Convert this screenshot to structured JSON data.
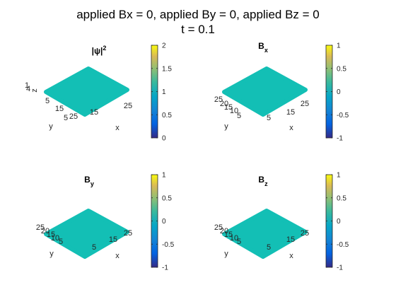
{
  "figure": {
    "title_line1": "applied Bx = 0, applied By = 0, applied Bz = 0",
    "title_line2": "t = 0.1"
  },
  "chart_data": [
    {
      "type": "surface",
      "title_main": "|ψ|",
      "title_sup": "2",
      "title_sub": "",
      "xlabel": "x",
      "ylabel": "y",
      "zlabel": "z",
      "x_ticks": [
        "5",
        "15",
        "25"
      ],
      "y_ticks": [
        "5",
        "15",
        "25"
      ],
      "z_ticks": [
        "1",
        "4"
      ],
      "surface_value": 1,
      "surface_color": "#13bfb5",
      "clim": [
        0,
        2
      ],
      "colorbar_ticks": [
        "0",
        "0.5",
        "1",
        "1.5",
        "2"
      ],
      "colorbar_tick_values": [
        0,
        0.5,
        1,
        1.5,
        2
      ]
    },
    {
      "type": "surface",
      "title_main": "B",
      "title_sup": "",
      "title_sub": "x",
      "xlabel": "x",
      "ylabel": "y",
      "zlabel": "",
      "x_ticks": [
        "5",
        "15",
        "25"
      ],
      "y_ticks": [
        "5",
        "10",
        "15",
        "20",
        "25"
      ],
      "z_ticks": [],
      "surface_value": 0,
      "surface_color": "#13bfb5",
      "clim": [
        -1,
        1
      ],
      "colorbar_ticks": [
        "-1",
        "-0.5",
        "0",
        "0.5",
        "1"
      ],
      "colorbar_tick_values": [
        -1,
        -0.5,
        0,
        0.5,
        1
      ]
    },
    {
      "type": "surface",
      "title_main": "B",
      "title_sup": "",
      "title_sub": "y",
      "xlabel": "x",
      "ylabel": "y",
      "zlabel": "",
      "x_ticks": [
        "5",
        "15",
        "25"
      ],
      "y_ticks": [
        "5",
        "10",
        "15",
        "20",
        "25"
      ],
      "z_ticks": [],
      "surface_value": 0,
      "surface_color": "#13bfb5",
      "clim": [
        -1,
        1
      ],
      "colorbar_ticks": [
        "-1",
        "-0.5",
        "0",
        "0.5",
        "1"
      ],
      "colorbar_tick_values": [
        -1,
        -0.5,
        0,
        0.5,
        1
      ]
    },
    {
      "type": "surface",
      "title_main": "B",
      "title_sup": "",
      "title_sub": "z",
      "xlabel": "x",
      "ylabel": "y",
      "zlabel": "",
      "x_ticks": [
        "5",
        "15",
        "25"
      ],
      "y_ticks": [
        "5",
        "10",
        "15",
        "20",
        "25"
      ],
      "z_ticks": [],
      "surface_value": 0,
      "surface_color": "#13bfb5",
      "clim": [
        -1,
        1
      ],
      "colorbar_ticks": [
        "-1",
        "-0.5",
        "0",
        "0.5",
        "1"
      ],
      "colorbar_tick_values": [
        -1,
        -0.5,
        0,
        0.5,
        1
      ]
    }
  ]
}
